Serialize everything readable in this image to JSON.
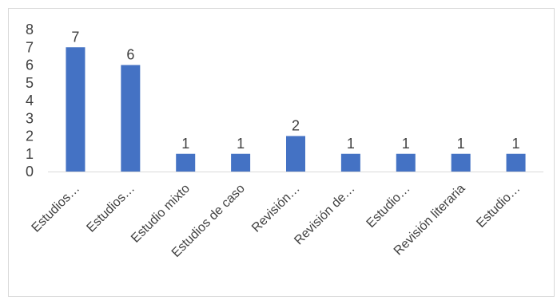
{
  "chart_data": {
    "type": "bar",
    "categories": [
      "Estudios…",
      "Estudios…",
      "Estudio mixto",
      "Estudios de caso",
      "Revisión…",
      "Revisión de…",
      "Estudio…",
      "Revisión literaria",
      "Estudio…"
    ],
    "values": [
      7,
      6,
      1,
      1,
      2,
      1,
      1,
      1,
      1
    ],
    "data_labels": [
      "7",
      "6",
      "1",
      "1",
      "2",
      "1",
      "1",
      "1",
      "1"
    ],
    "ylim": [
      0,
      8
    ],
    "yticks": [
      0,
      1,
      2,
      3,
      4,
      5,
      6,
      7,
      8
    ],
    "ytick_labels": [
      "0",
      "1",
      "2",
      "3",
      "4",
      "5",
      "6",
      "7",
      "8"
    ],
    "grid": false,
    "legend": "none",
    "colors": {
      "bar": "#4472C4",
      "axis": "#D9D9D9",
      "text": "#404040",
      "border": "#D9D9D9"
    }
  }
}
